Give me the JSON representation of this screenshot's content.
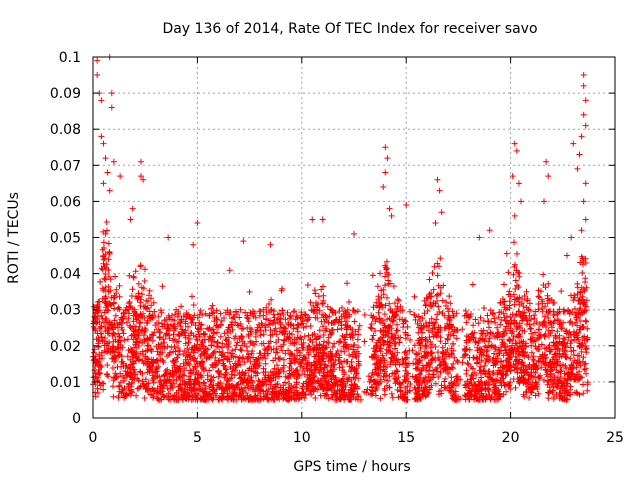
{
  "chart_data": {
    "type": "scatter",
    "title": "Day 136 of 2014, Rate Of TEC Index for receiver savo",
    "xlabel": "GPS time / hours",
    "ylabel": "ROTI / TECUs",
    "xlim": [
      0,
      25
    ],
    "ylim": [
      0,
      0.1
    ],
    "grid": true,
    "marker": "plus",
    "series_color": "#ff0000",
    "x_ticks": [
      0,
      5,
      10,
      15,
      20,
      25
    ],
    "x_tick_labels": [
      "0",
      "5",
      "10",
      "15",
      "20",
      "25"
    ],
    "y_ticks": [
      0,
      0.01,
      0.02,
      0.03,
      0.04,
      0.05,
      0.06,
      0.07,
      0.08,
      0.09,
      0.1
    ],
    "y_tick_labels": [
      "0",
      "0.01",
      "0.02",
      "0.03",
      "0.04",
      "0.05",
      "0.06",
      "0.07",
      "0.08",
      "0.09",
      "0.1"
    ],
    "data_x_range": [
      0,
      23.7
    ],
    "notes": "Dense point cloud; baseline roughly 0.005-0.03 TECU/min across the day, with spikes near 0.5-1 h (up to 0.1), ~2.3 h (~0.07), ~14 h (~0.075), ~16.5 h (~0.065), ~20.2 h (~0.075), ~21.7 h (~0.07) and ~23.5 h (~0.095).",
    "series": [
      {
        "name": "ROTI",
        "highlights": [
          {
            "x": 0.2,
            "y": 0.099
          },
          {
            "x": 0.2,
            "y": 0.095
          },
          {
            "x": 0.8,
            "y": 0.1
          },
          {
            "x": 0.3,
            "y": 0.09
          },
          {
            "x": 0.4,
            "y": 0.088
          },
          {
            "x": 0.9,
            "y": 0.09
          },
          {
            "x": 0.9,
            "y": 0.086
          },
          {
            "x": 0.4,
            "y": 0.078
          },
          {
            "x": 0.5,
            "y": 0.076
          },
          {
            "x": 0.6,
            "y": 0.072
          },
          {
            "x": 0.7,
            "y": 0.068
          },
          {
            "x": 1.0,
            "y": 0.071
          },
          {
            "x": 0.5,
            "y": 0.065
          },
          {
            "x": 0.8,
            "y": 0.063
          },
          {
            "x": 1.3,
            "y": 0.067
          },
          {
            "x": 2.3,
            "y": 0.071
          },
          {
            "x": 2.3,
            "y": 0.067
          },
          {
            "x": 2.4,
            "y": 0.066
          },
          {
            "x": 1.8,
            "y": 0.055
          },
          {
            "x": 1.9,
            "y": 0.058
          },
          {
            "x": 5.0,
            "y": 0.054
          },
          {
            "x": 3.6,
            "y": 0.05
          },
          {
            "x": 4.8,
            "y": 0.048
          },
          {
            "x": 7.2,
            "y": 0.049
          },
          {
            "x": 8.5,
            "y": 0.048
          },
          {
            "x": 10.5,
            "y": 0.055
          },
          {
            "x": 11.0,
            "y": 0.055
          },
          {
            "x": 12.5,
            "y": 0.051
          },
          {
            "x": 14.0,
            "y": 0.075
          },
          {
            "x": 14.1,
            "y": 0.072
          },
          {
            "x": 14.0,
            "y": 0.068
          },
          {
            "x": 13.9,
            "y": 0.064
          },
          {
            "x": 14.2,
            "y": 0.058
          },
          {
            "x": 14.3,
            "y": 0.056
          },
          {
            "x": 15.0,
            "y": 0.059
          },
          {
            "x": 16.5,
            "y": 0.066
          },
          {
            "x": 16.6,
            "y": 0.063
          },
          {
            "x": 16.7,
            "y": 0.057
          },
          {
            "x": 16.4,
            "y": 0.054
          },
          {
            "x": 18.5,
            "y": 0.05
          },
          {
            "x": 19.0,
            "y": 0.052
          },
          {
            "x": 20.2,
            "y": 0.076
          },
          {
            "x": 20.3,
            "y": 0.074
          },
          {
            "x": 20.1,
            "y": 0.067
          },
          {
            "x": 20.4,
            "y": 0.065
          },
          {
            "x": 20.5,
            "y": 0.06
          },
          {
            "x": 20.2,
            "y": 0.056
          },
          {
            "x": 21.7,
            "y": 0.071
          },
          {
            "x": 21.8,
            "y": 0.067
          },
          {
            "x": 21.6,
            "y": 0.06
          },
          {
            "x": 23.0,
            "y": 0.076
          },
          {
            "x": 23.5,
            "y": 0.095
          },
          {
            "x": 23.5,
            "y": 0.092
          },
          {
            "x": 23.6,
            "y": 0.088
          },
          {
            "x": 23.5,
            "y": 0.084
          },
          {
            "x": 23.6,
            "y": 0.081
          },
          {
            "x": 23.4,
            "y": 0.078
          },
          {
            "x": 23.3,
            "y": 0.073
          },
          {
            "x": 23.2,
            "y": 0.069
          },
          {
            "x": 23.6,
            "y": 0.065
          },
          {
            "x": 23.5,
            "y": 0.06
          },
          {
            "x": 23.6,
            "y": 0.055
          },
          {
            "x": 23.4,
            "y": 0.052
          },
          {
            "x": 22.9,
            "y": 0.05
          },
          {
            "x": 22.7,
            "y": 0.045
          }
        ]
      }
    ]
  }
}
